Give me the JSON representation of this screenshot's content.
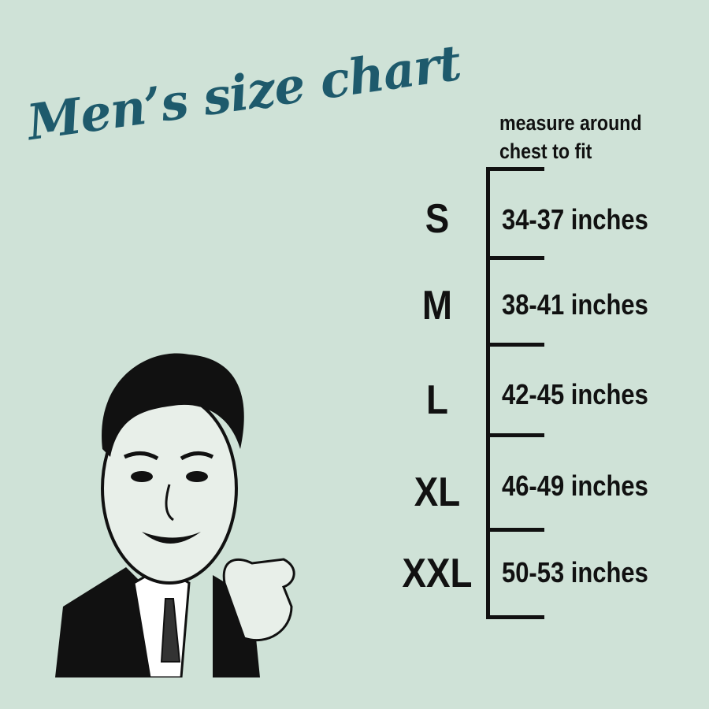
{
  "title": "Men’s size chart",
  "instruction": [
    "measure around",
    "chest to fit"
  ],
  "sizes": [
    {
      "size": "S",
      "range": "34-37 inches"
    },
    {
      "size": "M",
      "range": "38-41 inches"
    },
    {
      "size": "L",
      "range": "42-45 inches"
    },
    {
      "size": "XL",
      "range": "46-49 inches"
    },
    {
      "size": "XXL",
      "range": "50-53 inches"
    }
  ],
  "colors": {
    "background": "#cfe2d7",
    "title": "#1e5a6c",
    "text": "#111111"
  }
}
